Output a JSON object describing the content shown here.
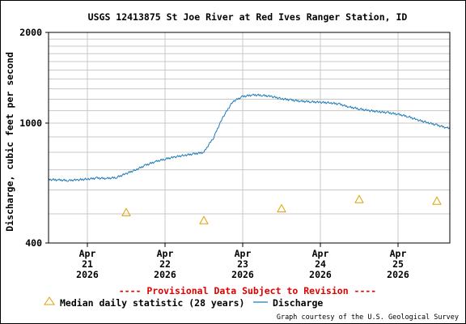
{
  "colors": {
    "discharge": "#1f7ab8",
    "median": "#e0a000",
    "provisional": "#e00000",
    "grid": "#c8c8c8",
    "axis": "#000000"
  },
  "chart_data": {
    "type": "line",
    "title": "USGS 12413875 St Joe River at Red Ives Ranger Station, ID",
    "ylabel": "Discharge, cubic feet per second",
    "xlabel": "",
    "y_scale": "log",
    "ylim": [
      400,
      2000
    ],
    "y_tick_labels": [
      {
        "label": "2000",
        "value": 2000
      },
      {
        "label": "1000",
        "value": 1000
      },
      {
        "label": "400",
        "value": 400
      }
    ],
    "y_gridlines": [
      500,
      600,
      700,
      800,
      900,
      1000,
      1100,
      1200,
      1300,
      1400,
      1500,
      1600,
      1700,
      1800,
      1900,
      2000
    ],
    "xlim": [
      "2026-04-20T12:00",
      "2026-04-25T16:00"
    ],
    "x_ticks": [
      {
        "date": "2026-04-21T00:00",
        "lines": [
          "Apr",
          "21",
          "2026"
        ]
      },
      {
        "date": "2026-04-22T00:00",
        "lines": [
          "Apr",
          "22",
          "2026"
        ]
      },
      {
        "date": "2026-04-23T00:00",
        "lines": [
          "Apr",
          "23",
          "2026"
        ]
      },
      {
        "date": "2026-04-24T00:00",
        "lines": [
          "Apr",
          "24",
          "2026"
        ]
      },
      {
        "date": "2026-04-25T00:00",
        "lines": [
          "Apr",
          "25",
          "2026"
        ]
      }
    ],
    "grid": true,
    "series": [
      {
        "name": "Discharge",
        "marker": "line",
        "points": [
          [
            "2026-04-20T12:00",
            650
          ],
          [
            "2026-04-20T15:00",
            648
          ],
          [
            "2026-04-20T18:00",
            645
          ],
          [
            "2026-04-20T21:00",
            648
          ],
          [
            "2026-04-21T00:00",
            652
          ],
          [
            "2026-04-21T03:00",
            657
          ],
          [
            "2026-04-21T06:00",
            655
          ],
          [
            "2026-04-21T09:00",
            660
          ],
          [
            "2026-04-21T12:00",
            680
          ],
          [
            "2026-04-21T15:00",
            700
          ],
          [
            "2026-04-21T18:00",
            725
          ],
          [
            "2026-04-21T21:00",
            745
          ],
          [
            "2026-04-22T00:00",
            760
          ],
          [
            "2026-04-22T03:00",
            772
          ],
          [
            "2026-04-22T06:00",
            782
          ],
          [
            "2026-04-22T09:00",
            790
          ],
          [
            "2026-04-22T12:00",
            800
          ],
          [
            "2026-04-22T15:00",
            895
          ],
          [
            "2026-04-22T18:00",
            1050
          ],
          [
            "2026-04-22T21:00",
            1180
          ],
          [
            "2026-04-23T00:00",
            1225
          ],
          [
            "2026-04-23T03:00",
            1240
          ],
          [
            "2026-04-23T06:00",
            1237
          ],
          [
            "2026-04-23T09:00",
            1225
          ],
          [
            "2026-04-23T12:00",
            1205
          ],
          [
            "2026-04-23T15:00",
            1193
          ],
          [
            "2026-04-23T18:00",
            1182
          ],
          [
            "2026-04-23T21:00",
            1178
          ],
          [
            "2026-04-24T00:00",
            1172
          ],
          [
            "2026-04-24T03:00",
            1168
          ],
          [
            "2026-04-24T06:00",
            1155
          ],
          [
            "2026-04-24T09:00",
            1130
          ],
          [
            "2026-04-24T12:00",
            1115
          ],
          [
            "2026-04-24T15:00",
            1100
          ],
          [
            "2026-04-24T18:00",
            1092
          ],
          [
            "2026-04-24T21:00",
            1082
          ],
          [
            "2026-04-25T00:00",
            1070
          ],
          [
            "2026-04-25T03:00",
            1052
          ],
          [
            "2026-04-25T06:00",
            1025
          ],
          [
            "2026-04-25T09:00",
            1005
          ],
          [
            "2026-04-25T12:00",
            985
          ],
          [
            "2026-04-25T15:00",
            965
          ],
          [
            "2026-04-25T18:00",
            950
          ],
          [
            "2026-04-25T21:00",
            940
          ]
        ]
      },
      {
        "name": "Median daily statistic (28 years)",
        "marker": "triangle",
        "points": [
          [
            "2026-04-21T12:00",
            505
          ],
          [
            "2026-04-22T12:00",
            475
          ],
          [
            "2026-04-23T12:00",
            520
          ],
          [
            "2026-04-24T12:00",
            558
          ],
          [
            "2026-04-25T12:00",
            551
          ]
        ]
      }
    ],
    "legend": {
      "placement": "bottom",
      "entries": [
        "Median daily statistic (28 years)",
        "Discharge"
      ]
    },
    "annotations": [
      "---- Provisional Data Subject to Revision ----"
    ],
    "footer": "Graph courtesy of the U.S. Geological Survey"
  }
}
